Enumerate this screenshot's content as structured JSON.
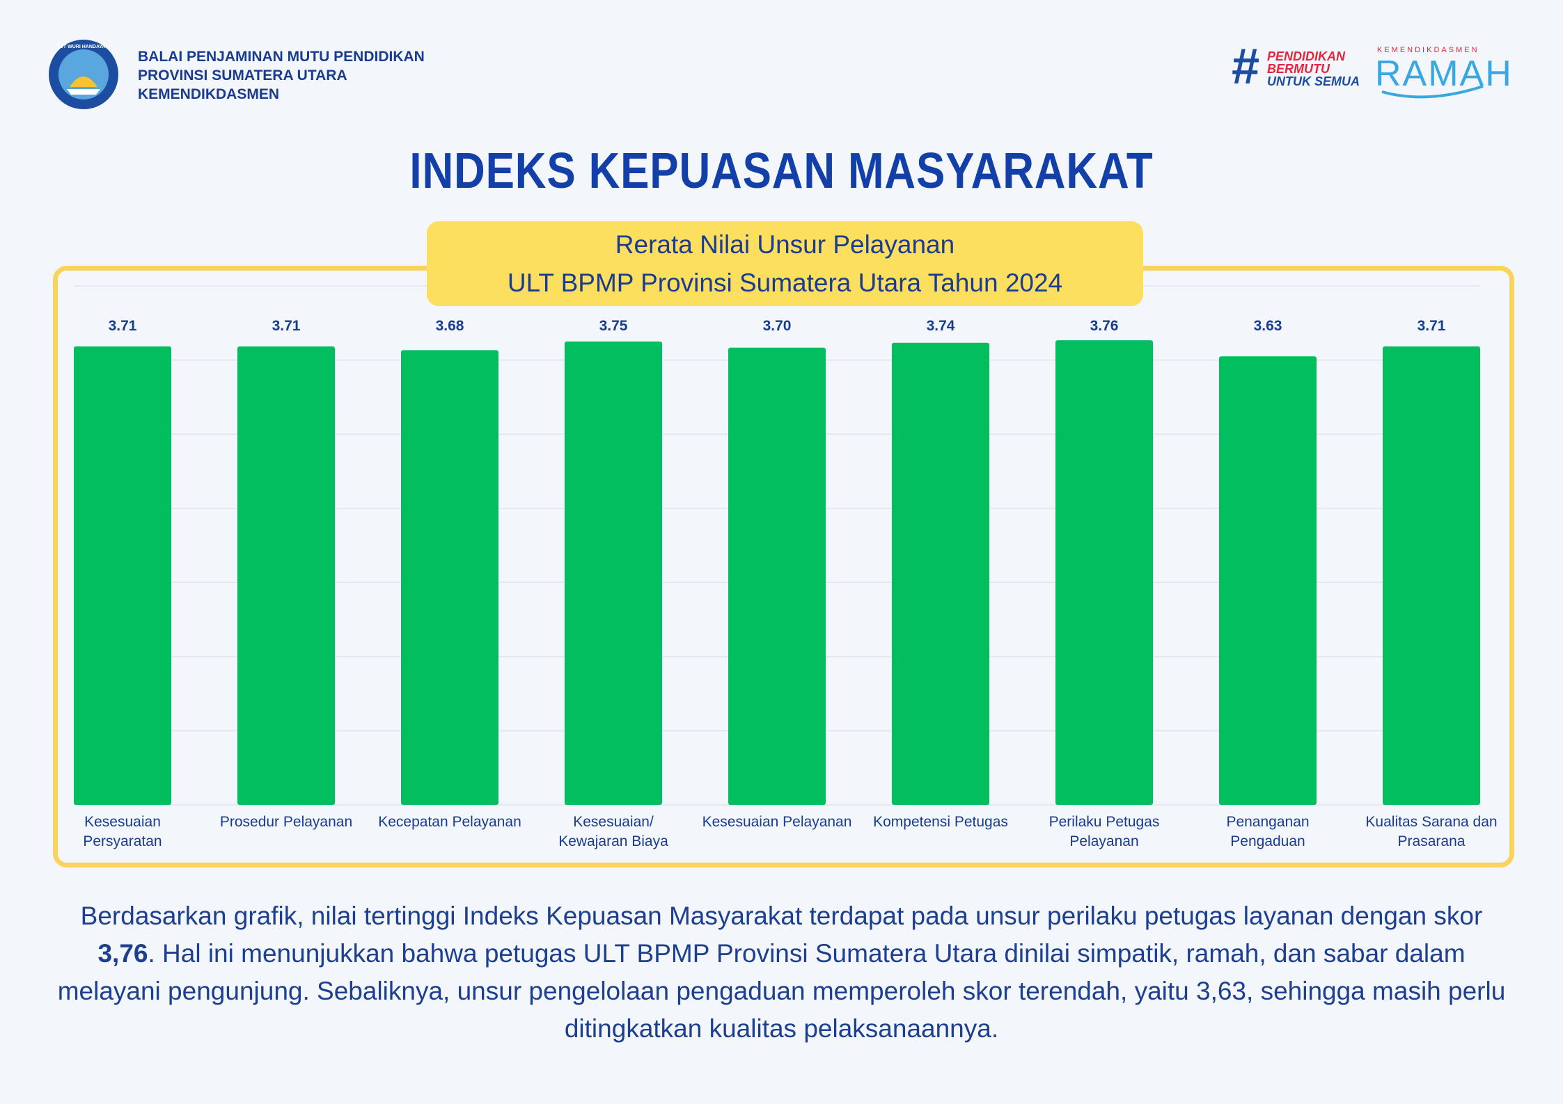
{
  "header": {
    "emblem": "TUT WURI HANDAYANI",
    "org": [
      "BALAI PENJAMINAN MUTU PENDIDIKAN",
      "PROVINSI SUMATERA UTARA",
      "KEMENDIKDASMEN"
    ],
    "tagline": {
      "hash": "#",
      "lines": [
        "PENDIDIKAN",
        "BERMUTU",
        "UNTUK SEMUA"
      ]
    },
    "ramah": {
      "ministry": "KEMENDIKDASMEN",
      "name": "RAMAH"
    }
  },
  "chart_data": {
    "type": "bar",
    "title": "INDEKS KEPUASAN MASYARAKAT",
    "subtitle": [
      "Rerata Nilai Unsur Pelayanan",
      "ULT BPMP Provinsi Sumatera Utara Tahun 2024"
    ],
    "categories": [
      "Kesesuaian Persyaratan",
      "Prosedur Pelayanan",
      "Kecepatan Pelayanan",
      "Kesesuaian/ Kewajaran Biaya",
      "Kesesuaian Pelayanan",
      "Kompetensi Petugas",
      "Perilaku Petugas Pelayanan",
      "Penanganan Pengaduan",
      "Kualitas Sarana dan Prasarana"
    ],
    "values": [
      3.71,
      3.71,
      3.68,
      3.75,
      3.7,
      3.74,
      3.76,
      3.63,
      3.71
    ],
    "value_labels": [
      "3.71",
      "3.71",
      "3.68",
      "3.75",
      "3.70",
      "3.74",
      "3.76",
      "3.63",
      "3.71"
    ],
    "color": "#03be5e",
    "ylim": [
      0,
      4.2
    ],
    "yticks": [
      0,
      0.6,
      1.2,
      1.8,
      2.4,
      3,
      3.6,
      4.2
    ],
    "grid": true
  },
  "summary": [
    "Berdasarkan grafik, nilai tertinggi Indeks Kepuasan Masyarakat terdapat pada unsur perilaku petugas layanan dengan skor ",
    "3,76",
    ". Hal ini menunjukkan bahwa petugas ULT BPMP Provinsi Sumatera Utara dinilai simpatik, ramah, dan sabar dalam melayani pengunjung. Sebaliknya, unsur pengelolaan pengaduan memperoleh skor terendah, yaitu 3,63, sehingga masih perlu ditingkatkan kualitas pelaksanaannya."
  ]
}
